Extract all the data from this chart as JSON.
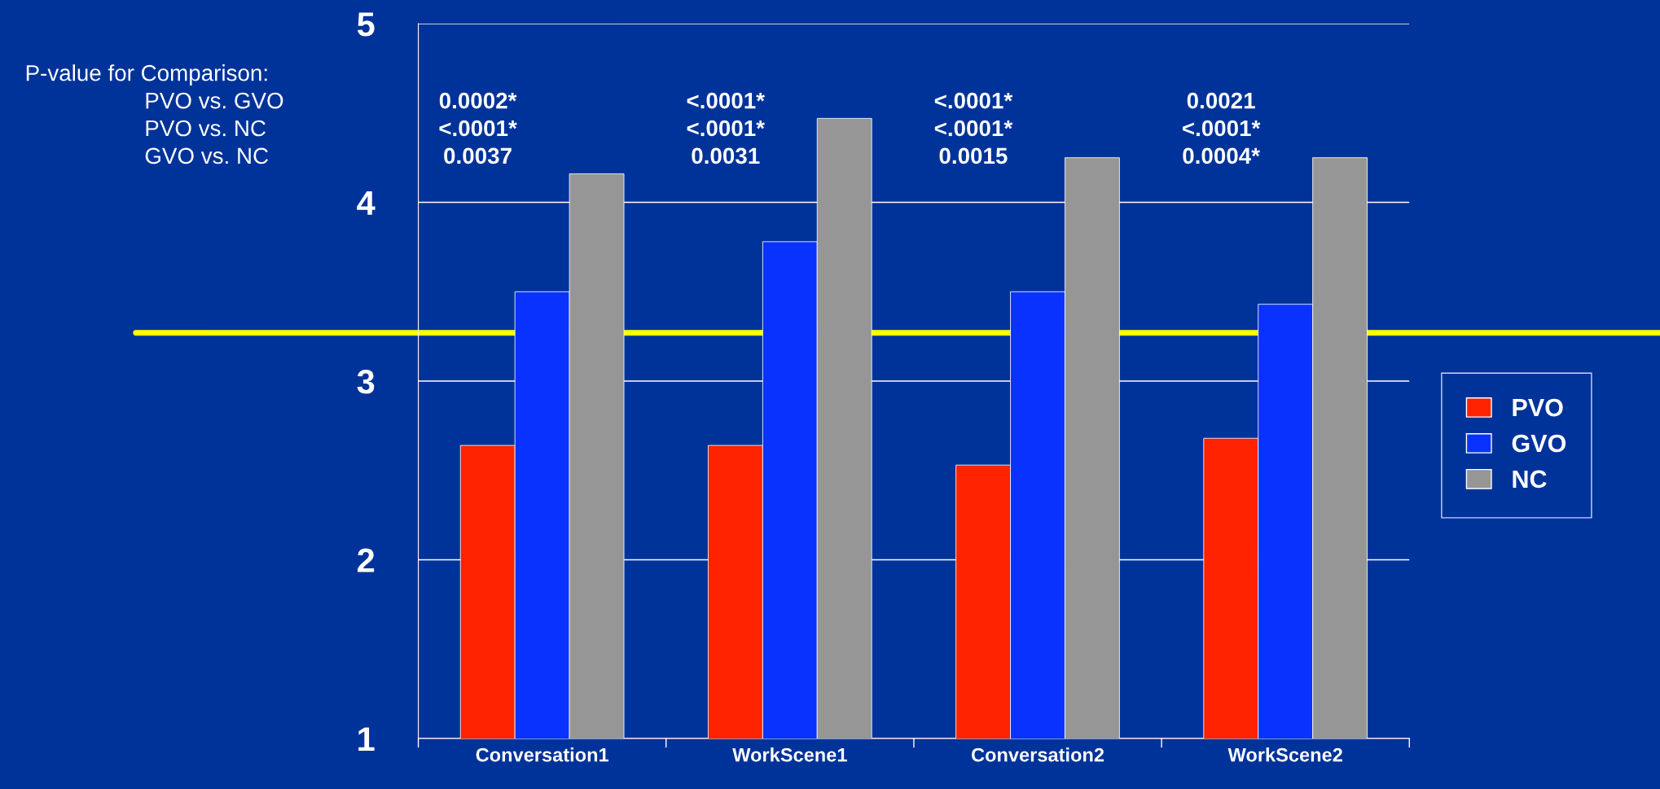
{
  "chart_data": {
    "type": "bar",
    "categories": [
      "Conversation1",
      "WorkScene1",
      "Conversation2",
      "WorkScene2"
    ],
    "series": [
      {
        "name": "PVO",
        "color": "#ff2200",
        "values": [
          2.64,
          2.64,
          2.53,
          2.68
        ]
      },
      {
        "name": "GVO",
        "color": "#0a32ff",
        "values": [
          3.5,
          3.78,
          3.5,
          3.43
        ]
      },
      {
        "name": "NC",
        "color": "#969696",
        "values": [
          4.16,
          4.47,
          4.25,
          4.25
        ]
      }
    ],
    "ylim": [
      1,
      5
    ],
    "yticks": [
      1,
      2,
      3,
      4,
      5
    ],
    "grid": "y",
    "legend": "right",
    "ref_lines": [
      {
        "axis": "y",
        "value": 3.27,
        "color": "#ffff00"
      }
    ],
    "annotations": [
      "P-value for Comparison:",
      "PVO vs. GVO",
      "PVO vs. NC",
      "GVO vs. NC",
      "0.0002*",
      "<.0001*",
      "0.0037",
      "<.0001*",
      "<.0001*",
      "0.0031",
      "<.0001*",
      "<.0001*",
      "0.0015",
      "0.0021",
      "<.0001*",
      "0.0004*"
    ]
  }
}
